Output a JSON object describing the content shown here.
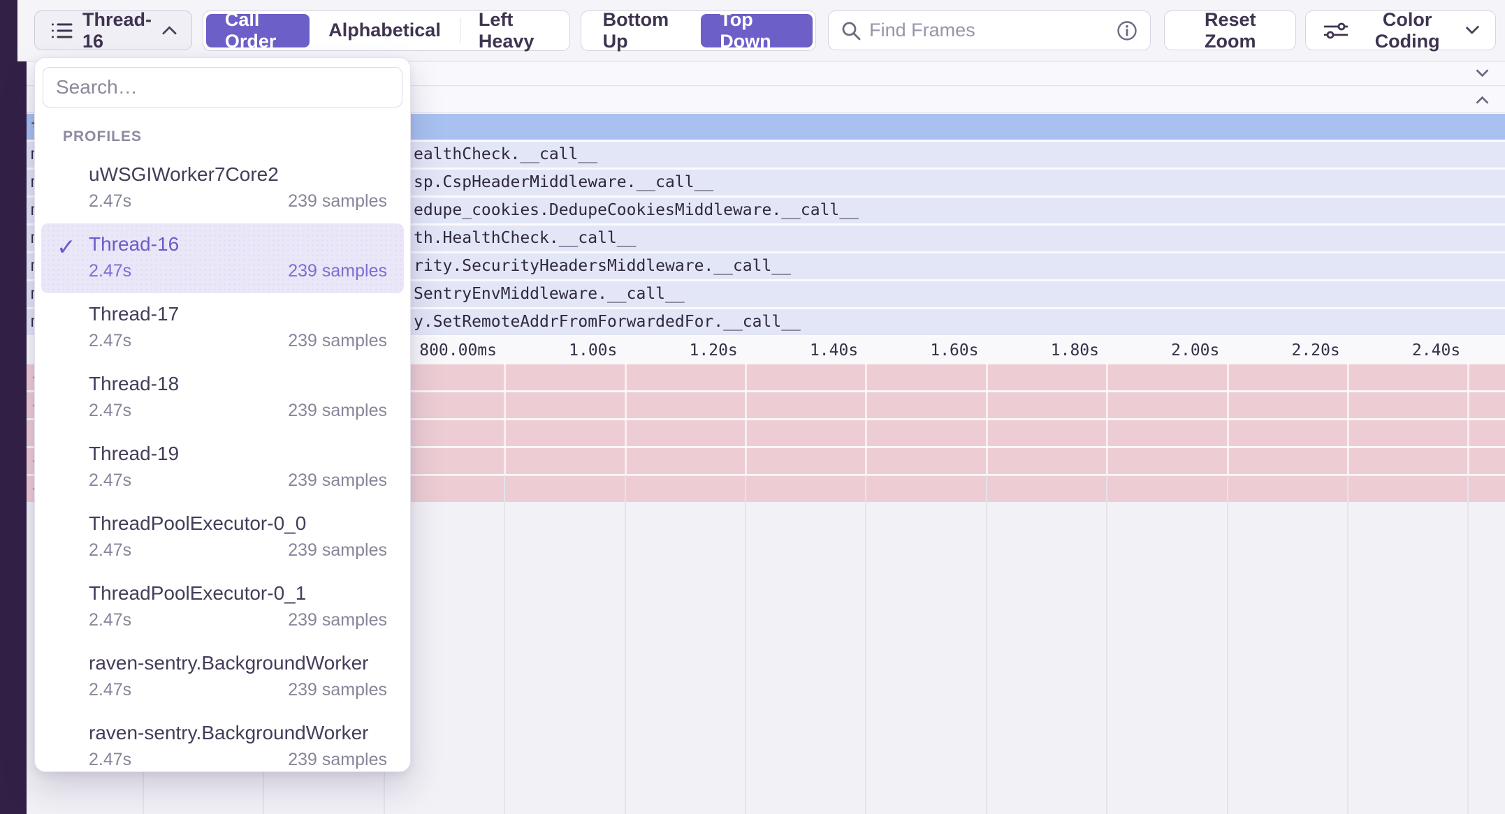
{
  "toolbar": {
    "thread_selector": {
      "label": "Thread-16"
    },
    "sort_modes": [
      {
        "label": "Call Order",
        "active": true
      },
      {
        "label": "Alphabetical",
        "active": false
      },
      {
        "label": "Left Heavy",
        "active": false
      }
    ],
    "direction_modes": [
      {
        "label": "Bottom Up",
        "active": false
      },
      {
        "label": "Top Down",
        "active": true
      }
    ],
    "find_frames_placeholder": "Find Frames",
    "reset_zoom_label": "Reset Zoom",
    "color_coding_label": "Color Coding"
  },
  "profiles_dropdown": {
    "search_placeholder": "Search…",
    "section_label": "PROFILES",
    "items": [
      {
        "name": "uWSGIWorker7Core2",
        "duration": "2.47s",
        "samples": "239 samples",
        "selected": false
      },
      {
        "name": "Thread-16",
        "duration": "2.47s",
        "samples": "239 samples",
        "selected": true
      },
      {
        "name": "Thread-17",
        "duration": "2.47s",
        "samples": "239 samples",
        "selected": false
      },
      {
        "name": "Thread-18",
        "duration": "2.47s",
        "samples": "239 samples",
        "selected": false
      },
      {
        "name": "Thread-19",
        "duration": "2.47s",
        "samples": "239 samples",
        "selected": false
      },
      {
        "name": "ThreadPoolExecutor-0_0",
        "duration": "2.47s",
        "samples": "239 samples",
        "selected": false
      },
      {
        "name": "ThreadPoolExecutor-0_1",
        "duration": "2.47s",
        "samples": "239 samples",
        "selected": false
      },
      {
        "name": "raven-sentry.BackgroundWorker",
        "duration": "2.47s",
        "samples": "239 samples",
        "selected": false
      },
      {
        "name": "raven-sentry.BackgroundWorker",
        "duration": "2.47s",
        "samples": "239 samples",
        "selected": false
      }
    ],
    "check_glyph": "✓"
  },
  "flame": {
    "root_row_fragment": "t",
    "rows": [
      {
        "left_char": "m",
        "text": "ealthCheck.__call__"
      },
      {
        "left_char": "m",
        "text": "sp.CspHeaderMiddleware.__call__"
      },
      {
        "left_char": "m",
        "text": "edupe_cookies.DedupeCookiesMiddleware.__call__"
      },
      {
        "left_char": "m",
        "text": "th.HealthCheck.__call__"
      },
      {
        "left_char": "m",
        "text": "rity.SecurityHeadersMiddleware.__call__"
      },
      {
        "left_char": "m",
        "text": "SentryEnvMiddleware.__call__"
      },
      {
        "left_char": "m",
        "text": "y.SetRemoteAddrFromForwardedFor.__call__"
      }
    ],
    "axis_ticks": [
      "800.00ms",
      "1.00s",
      "1.20s",
      "1.40s",
      "1.60s",
      "1.80s",
      "2.00s",
      "2.20s",
      "2.40s"
    ],
    "pink_rows": [
      {
        "left_char": "-"
      },
      {
        "left_char": "-"
      },
      {
        "left_char": "|"
      },
      {
        "left_char": "-"
      },
      {
        "left_char": "-"
      }
    ],
    "colors": {
      "selected_frame_row": "#A8C1F0",
      "frame_row": "#E3E6F7",
      "highlight_row": "#EDCDD3",
      "accent_purple": "#6C5FC7",
      "left_edge": "#332046"
    }
  }
}
